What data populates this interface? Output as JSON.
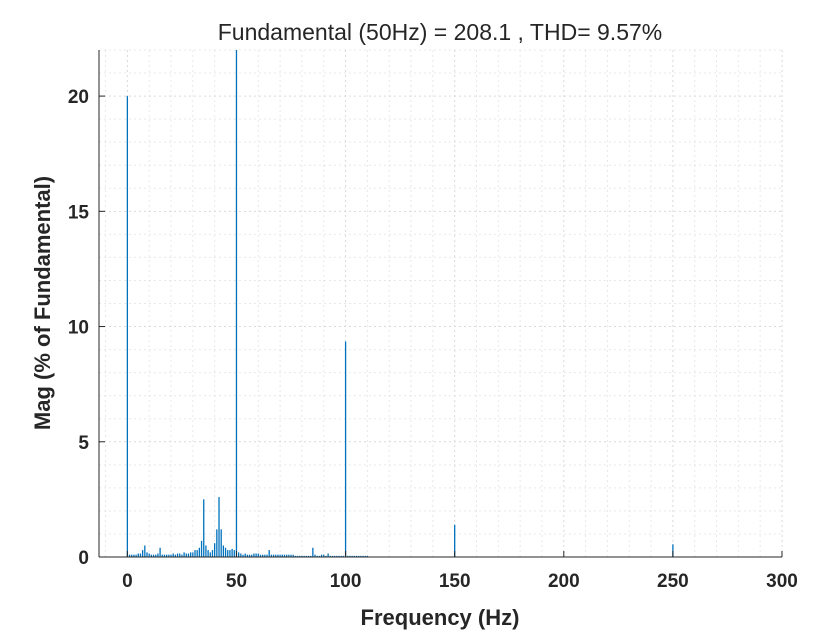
{
  "chart_data": {
    "type": "bar",
    "title": "Fundamental (50Hz) = 208.1 , THD= 9.57%",
    "xlabel": "Frequency (Hz)",
    "ylabel": "Mag (% of Fundamental)",
    "xlim": [
      -13,
      300
    ],
    "ylim": [
      0,
      22
    ],
    "xticks": [
      "0",
      "50",
      "100",
      "150",
      "200",
      "250",
      "300"
    ],
    "yticks": [
      "0",
      "5",
      "10",
      "15",
      "20"
    ],
    "grid": true,
    "minor_grid": true,
    "bar_color": "#0072BD",
    "x": [
      0,
      1,
      2,
      3,
      4,
      5,
      6,
      7,
      8,
      9,
      10,
      11,
      12,
      13,
      14,
      15,
      16,
      17,
      18,
      19,
      20,
      21,
      22,
      23,
      24,
      25,
      26,
      27,
      28,
      29,
      30,
      31,
      32,
      33,
      34,
      35,
      36,
      37,
      38,
      39,
      40,
      41,
      42,
      43,
      44,
      45,
      46,
      47,
      48,
      49,
      50,
      51,
      52,
      53,
      54,
      55,
      56,
      57,
      58,
      59,
      60,
      61,
      62,
      63,
      64,
      65,
      66,
      67,
      68,
      69,
      70,
      71,
      72,
      73,
      74,
      75,
      76,
      77,
      78,
      79,
      80,
      81,
      82,
      83,
      84,
      85,
      86,
      87,
      88,
      89,
      90,
      91,
      92,
      93,
      94,
      95,
      96,
      97,
      98,
      99,
      100,
      101,
      102,
      103,
      104,
      105,
      106,
      107,
      108,
      109,
      110,
      150,
      250
    ],
    "values": [
      20.0,
      0.1,
      0.1,
      0.1,
      0.1,
      0.15,
      0.15,
      0.3,
      0.5,
      0.2,
      0.15,
      0.1,
      0.1,
      0.1,
      0.15,
      0.4,
      0.1,
      0.1,
      0.1,
      0.1,
      0.1,
      0.15,
      0.1,
      0.15,
      0.15,
      0.1,
      0.2,
      0.15,
      0.15,
      0.2,
      0.2,
      0.3,
      0.3,
      0.4,
      0.7,
      2.5,
      0.5,
      0.3,
      0.2,
      0.3,
      0.6,
      1.2,
      2.6,
      1.2,
      0.5,
      0.4,
      0.3,
      0.3,
      0.35,
      0.3,
      22.0,
      0.2,
      0.15,
      0.1,
      0.15,
      0.1,
      0.1,
      0.1,
      0.15,
      0.15,
      0.15,
      0.1,
      0.1,
      0.1,
      0.1,
      0.3,
      0.1,
      0.1,
      0.1,
      0.1,
      0.1,
      0.1,
      0.1,
      0.1,
      0.1,
      0.1,
      0.1,
      0.05,
      0.05,
      0.05,
      0.05,
      0.05,
      0.05,
      0.05,
      0.05,
      0.4,
      0.1,
      0.05,
      0.05,
      0.1,
      0.1,
      0.05,
      0.15,
      0.05,
      0.05,
      0.05,
      0.05,
      0.05,
      0.05,
      0.05,
      9.35,
      0.05,
      0.05,
      0.05,
      0.05,
      0.05,
      0.05,
      0.05,
      0.05,
      0.05,
      0.05,
      1.4,
      0.55
    ]
  }
}
